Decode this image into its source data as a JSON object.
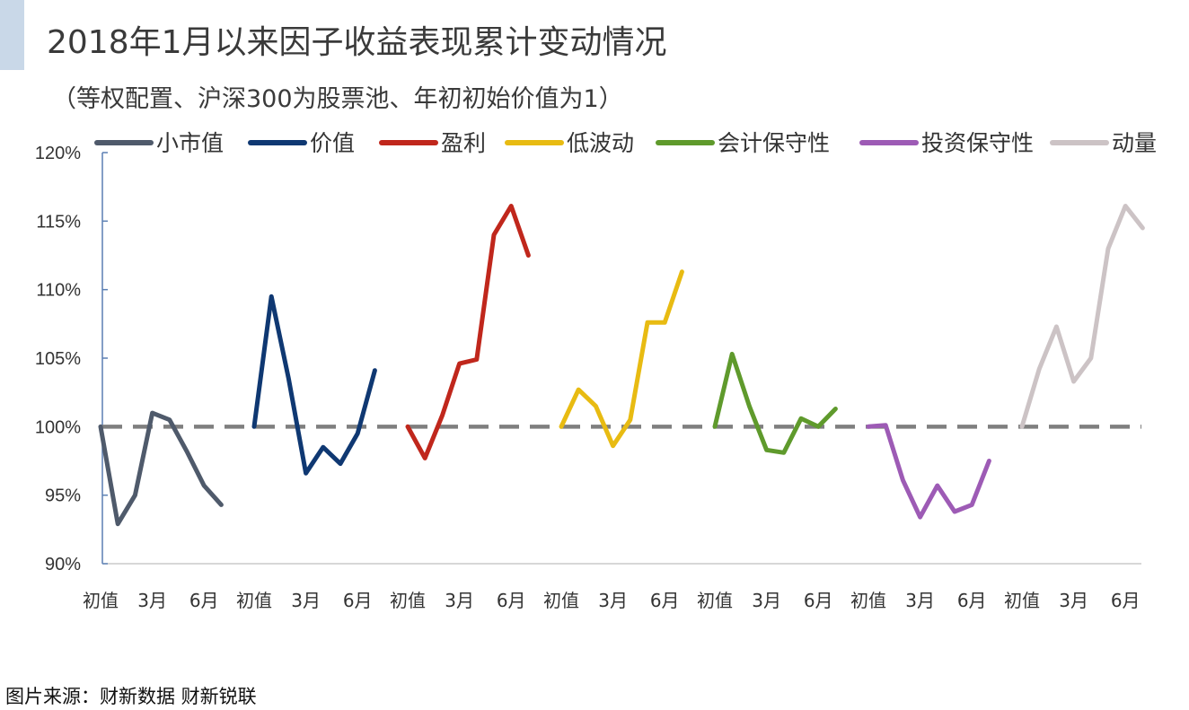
{
  "header": {
    "title": "2018年1月以来因子收益表现累计变动情况",
    "subtitle": "（等权配置、沪深300为股票池、年初初始价值为1）"
  },
  "footer": {
    "source": "图片来源：财新数据 财新锐联"
  },
  "chart_data": {
    "type": "line",
    "ylim": [
      0.9,
      1.2
    ],
    "y_ticks": [
      0.9,
      0.95,
      1.0,
      1.05,
      1.1,
      1.15,
      1.2
    ],
    "y_tick_labels": [
      "90%",
      "95%",
      "100%",
      "105%",
      "110%",
      "115%",
      "120%"
    ],
    "x_labels": [
      "初值",
      "",
      "",
      "3月",
      "",
      "",
      "6月",
      ""
    ],
    "x_label_positions": [
      0,
      3,
      6
    ],
    "reference_line": {
      "value": 1.0,
      "style": "dashed",
      "color": "#7f7f7f"
    },
    "legend_position": "top",
    "series": [
      {
        "name": "小市值",
        "color": "#4f5a6b",
        "values": [
          1.0,
          0.929,
          0.95,
          1.01,
          1.005,
          0.982,
          0.957,
          0.943
        ]
      },
      {
        "name": "价值",
        "color": "#0f3872",
        "values": [
          1.0,
          1.095,
          1.035,
          0.966,
          0.985,
          0.973,
          0.995,
          1.041
        ]
      },
      {
        "name": "盈利",
        "color": "#c0271c",
        "values": [
          1.0,
          0.977,
          1.008,
          1.046,
          1.049,
          1.14,
          1.161,
          1.125
        ]
      },
      {
        "name": "低波动",
        "color": "#e8bb12",
        "values": [
          1.0,
          1.027,
          1.015,
          0.986,
          1.005,
          1.076,
          1.076,
          1.113
        ]
      },
      {
        "name": "会计保守性",
        "color": "#5f9a2c",
        "values": [
          1.0,
          1.053,
          1.015,
          0.983,
          0.981,
          1.006,
          1.0,
          1.013
        ]
      },
      {
        "name": "投资保守性",
        "color": "#9d5bb5",
        "values": [
          1.0,
          1.001,
          0.961,
          0.934,
          0.957,
          0.938,
          0.943,
          0.975
        ]
      },
      {
        "name": "动量",
        "color": "#ccc3c5",
        "values": [
          1.0,
          1.042,
          1.073,
          1.033,
          1.05,
          1.13,
          1.161,
          1.145
        ]
      }
    ]
  }
}
